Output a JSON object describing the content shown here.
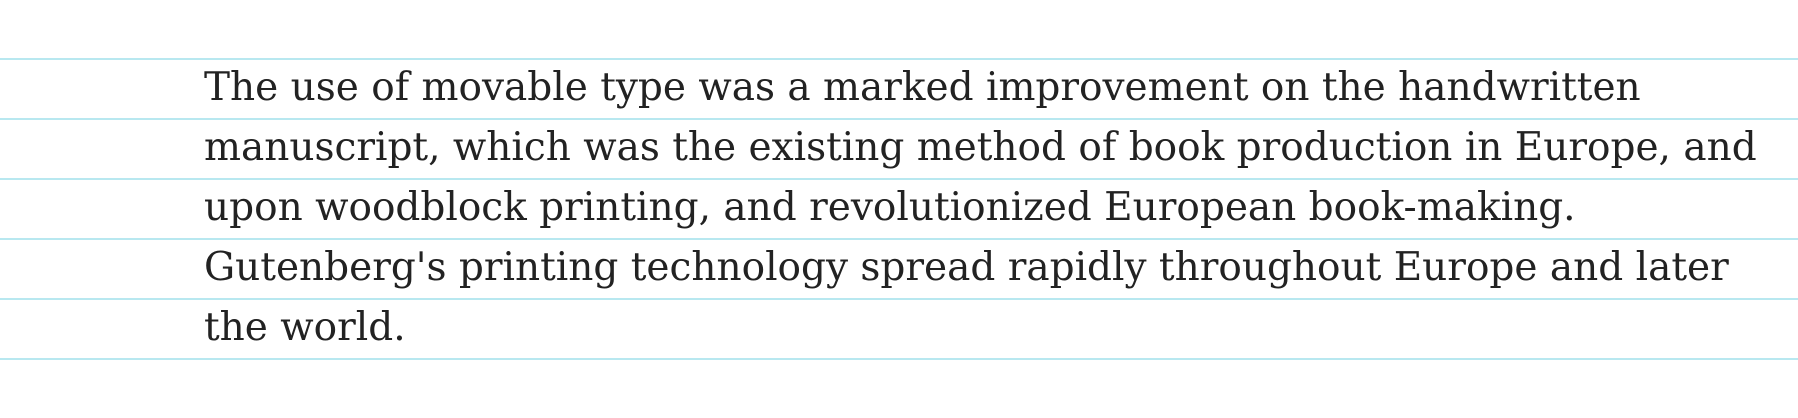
{
  "document": {
    "lines": [
      "The use of movable type was a marked improvement on the handwritten",
      "manuscript, which was the existing method of book production in Europe, and",
      "upon woodblock printing, and revolutionized European book-making.",
      "Gutenberg's printing technology spread rapidly throughout Europe and later",
      "the world."
    ]
  },
  "colors": {
    "rule_line": "#b8e8f0",
    "text": "#222222",
    "background": "#ffffff"
  }
}
